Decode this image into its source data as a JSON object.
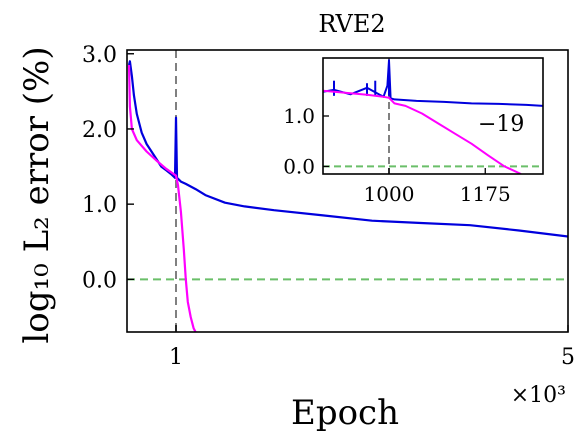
{
  "chart_data": {
    "type": "line",
    "title": "RVE2",
    "xlabel": "Epoch",
    "ylabel": "log₁₀ L₂ error (%)",
    "x_multiplier": "×10³",
    "x_ticks": [
      {
        "value": 1,
        "label": "1"
      },
      {
        "value": 5,
        "label": "5"
      }
    ],
    "y_ticks": [
      {
        "value": 3.0,
        "label": "3.0"
      },
      {
        "value": 2.0,
        "label": "2.0"
      },
      {
        "value": 1.0,
        "label": "1.0"
      },
      {
        "value": 0.0,
        "label": "0.0"
      }
    ],
    "xlim": [
      0.5,
      5.0
    ],
    "ylim": [
      -0.7,
      3.05
    ],
    "grid": false,
    "reference_lines": [
      {
        "orientation": "vertical",
        "value": 1,
        "color": "#808080",
        "style": "dashed"
      },
      {
        "orientation": "horizontal",
        "value": 0.0,
        "color": "#6abf69",
        "style": "dashed"
      }
    ],
    "series": [
      {
        "color": "#0000dd",
        "x": [
          0.52,
          0.53,
          0.55,
          0.57,
          0.6,
          0.65,
          0.7,
          0.75,
          0.8,
          0.85,
          0.9,
          0.95,
          0.99,
          1.0,
          1.01,
          1.05,
          1.1,
          1.2,
          1.3,
          1.5,
          1.7,
          2.0,
          2.5,
          3.0,
          3.5,
          4.0,
          4.5,
          5.0
        ],
        "y": [
          2.85,
          2.9,
          2.7,
          2.45,
          2.2,
          1.95,
          1.8,
          1.7,
          1.6,
          1.5,
          1.45,
          1.4,
          1.35,
          2.15,
          1.35,
          1.3,
          1.27,
          1.2,
          1.12,
          1.02,
          0.97,
          0.92,
          0.85,
          0.78,
          0.75,
          0.72,
          0.65,
          0.57
        ]
      },
      {
        "color": "#ff00ff",
        "x": [
          0.52,
          0.53,
          0.55,
          0.6,
          0.7,
          0.8,
          0.9,
          1.0,
          1.02,
          1.05,
          1.08,
          1.1,
          1.12,
          1.15,
          1.18,
          1.2
        ],
        "y": [
          2.85,
          2.3,
          2.0,
          1.85,
          1.7,
          1.58,
          1.47,
          1.38,
          1.25,
          0.9,
          0.4,
          0.0,
          -0.3,
          -0.5,
          -0.65,
          -0.7
        ]
      }
    ],
    "inset": {
      "x_ticks": [
        {
          "value": 1000,
          "label": "1000"
        },
        {
          "value": 1175,
          "label": "1175"
        }
      ],
      "y_ticks": [
        {
          "value": 1.0,
          "label": "1.0"
        },
        {
          "value": 0.0,
          "label": "0.0"
        }
      ],
      "xlim": [
        880,
        1280
      ],
      "ylim": [
        -0.15,
        2.15
      ],
      "annotation": {
        "text": "−19",
        "color": "#ff00ff"
      },
      "series": [
        {
          "color": "#0000dd",
          "x": [
            880,
            900,
            930,
            960,
            990,
            997,
            1000,
            1003,
            1010,
            1050,
            1100,
            1150,
            1200,
            1250,
            1280
          ],
          "y": [
            1.48,
            1.52,
            1.43,
            1.56,
            1.38,
            1.6,
            2.1,
            1.35,
            1.33,
            1.3,
            1.28,
            1.25,
            1.24,
            1.22,
            1.2
          ],
          "spikes": [
            [
              900,
              1.7
            ],
            [
              960,
              1.65
            ],
            [
              975,
              1.7
            ],
            [
              1000,
              2.12
            ]
          ]
        },
        {
          "color": "#ff00ff",
          "x": [
            880,
            920,
            960,
            990,
            1000,
            1010,
            1030,
            1060,
            1090,
            1120,
            1150,
            1180,
            1210,
            1240
          ],
          "y": [
            1.5,
            1.46,
            1.42,
            1.38,
            1.36,
            1.25,
            1.2,
            1.05,
            0.85,
            0.65,
            0.45,
            0.22,
            0.0,
            -0.15
          ]
        }
      ],
      "reference_lines": [
        {
          "orientation": "vertical",
          "value": 1000,
          "color": "#808080",
          "style": "dashed"
        },
        {
          "orientation": "horizontal",
          "value": 0.0,
          "color": "#6abf69",
          "style": "dashed"
        }
      ]
    }
  }
}
